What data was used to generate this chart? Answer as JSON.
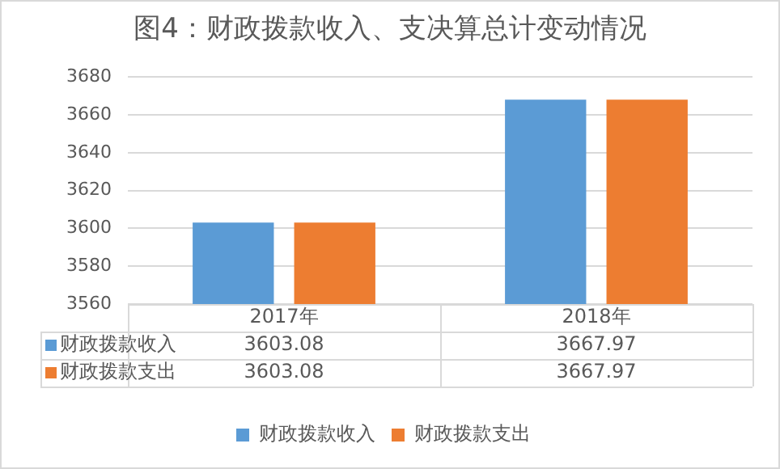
{
  "chart_data": {
    "type": "bar",
    "title": "图4：财政拨款收入、支决算总计变动情况",
    "categories": [
      "2017年",
      "2018年"
    ],
    "series": [
      {
        "name": "财政拨款收入",
        "color": "#5b9bd5",
        "values": [
          3603.08,
          3667.97
        ],
        "value_labels": [
          "3603.08",
          "3667.97"
        ]
      },
      {
        "name": "财政拨款支出",
        "color": "#ed7d31",
        "values": [
          3603.08,
          3667.97
        ],
        "value_labels": [
          "3603.08",
          "3667.97"
        ]
      }
    ],
    "ylim": [
      3560,
      3680
    ],
    "yticks": [
      3560,
      3580,
      3600,
      3620,
      3640,
      3660,
      3680
    ],
    "grid": "y",
    "legend": "bottom"
  }
}
